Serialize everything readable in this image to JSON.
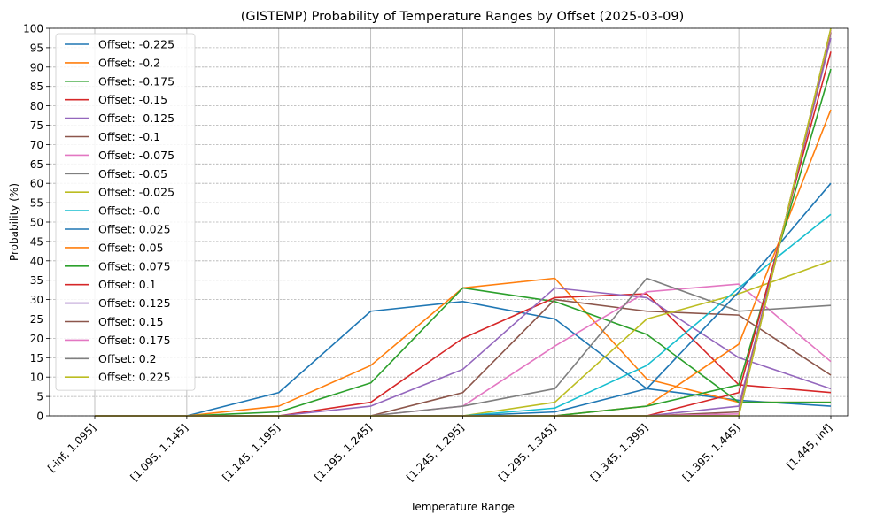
{
  "chart_data": {
    "type": "line",
    "title": "(GISTEMP) Probability of Temperature Ranges by Offset (2025-03-09)",
    "xlabel": "Temperature Range",
    "ylabel": "Probability (%)",
    "ylim": [
      0,
      100
    ],
    "yticks": [
      0,
      5,
      10,
      15,
      20,
      25,
      30,
      35,
      40,
      45,
      50,
      55,
      60,
      65,
      70,
      75,
      80,
      85,
      90,
      95,
      100
    ],
    "categories": [
      "[-inf, 1.095]",
      "[1.095, 1.145]",
      "[1.145, 1.195]",
      "[1.195, 1.245]",
      "[1.245, 1.295]",
      "[1.295, 1.345]",
      "[1.345, 1.395]",
      "[1.395, 1.445]",
      "[1.445, inf]"
    ],
    "grid": true,
    "legend_position": "top-left",
    "series": [
      {
        "name": "Offset: -0.225",
        "color": "#1f77b4",
        "values": [
          0,
          0,
          6,
          27,
          29.5,
          25,
          7,
          4,
          2.5
        ]
      },
      {
        "name": "Offset: -0.2",
        "color": "#ff7f0e",
        "values": [
          0,
          0,
          2.5,
          13,
          33,
          35.5,
          9.5,
          3.5,
          3.5
        ]
      },
      {
        "name": "Offset: -0.175",
        "color": "#2ca02c",
        "values": [
          0,
          0,
          1,
          8.5,
          33,
          29.5,
          21,
          3.5,
          3.5
        ]
      },
      {
        "name": "Offset: -0.15",
        "color": "#d62728",
        "values": [
          0,
          0,
          0,
          3.5,
          20,
          30.5,
          31.5,
          8,
          6
        ]
      },
      {
        "name": "Offset: -0.125",
        "color": "#9467bd",
        "values": [
          0,
          0,
          0,
          2.5,
          12,
          33,
          30.5,
          15,
          7
        ]
      },
      {
        "name": "Offset: -0.1",
        "color": "#8c564b",
        "values": [
          0,
          0,
          0,
          0,
          6,
          30,
          27,
          26,
          10.5
        ]
      },
      {
        "name": "Offset: -0.075",
        "color": "#e377c2",
        "values": [
          0,
          0,
          0,
          0,
          2.5,
          18,
          32,
          34,
          14
        ]
      },
      {
        "name": "Offset: -0.05",
        "color": "#7f7f7f",
        "values": [
          0,
          0,
          0,
          0,
          2.5,
          7,
          35.5,
          27,
          28.5
        ]
      },
      {
        "name": "Offset: -0.025",
        "color": "#bcbd22",
        "values": [
          0,
          0,
          0,
          0,
          0,
          3.5,
          25,
          31.5,
          40
        ]
      },
      {
        "name": "Offset: -0.0",
        "color": "#17becf",
        "values": [
          0,
          0,
          0,
          0,
          0,
          2,
          13,
          33,
          52
        ]
      },
      {
        "name": "Offset: 0.025",
        "color": "#1f77b4",
        "values": [
          0,
          0,
          0,
          0,
          0,
          1,
          7,
          32,
          60
        ]
      },
      {
        "name": "Offset: 0.05",
        "color": "#ff7f0e",
        "values": [
          0,
          0,
          0,
          0,
          0,
          0,
          2.5,
          18.5,
          79
        ]
      },
      {
        "name": "Offset: 0.075",
        "color": "#2ca02c",
        "values": [
          0,
          0,
          0,
          0,
          0,
          0,
          2.5,
          8,
          89.5
        ]
      },
      {
        "name": "Offset: 0.1",
        "color": "#d62728",
        "values": [
          0,
          0,
          0,
          0,
          0,
          0,
          0,
          6,
          94
        ]
      },
      {
        "name": "Offset: 0.125",
        "color": "#9467bd",
        "values": [
          0,
          0,
          0,
          0,
          0,
          0,
          0,
          2.5,
          97.5
        ]
      },
      {
        "name": "Offset: 0.15",
        "color": "#8c564b",
        "values": [
          0,
          0,
          0,
          0,
          0,
          0,
          0,
          1,
          99
        ]
      },
      {
        "name": "Offset: 0.175",
        "color": "#e377c2",
        "values": [
          0,
          0,
          0,
          0,
          0,
          0,
          0,
          0.5,
          99.5
        ]
      },
      {
        "name": "Offset: 0.2",
        "color": "#7f7f7f",
        "values": [
          0,
          0,
          0,
          0,
          0,
          0,
          0,
          0,
          100
        ]
      },
      {
        "name": "Offset: 0.225",
        "color": "#bcbd22",
        "values": [
          0,
          0,
          0,
          0,
          0,
          0,
          0,
          0,
          100
        ]
      }
    ]
  }
}
